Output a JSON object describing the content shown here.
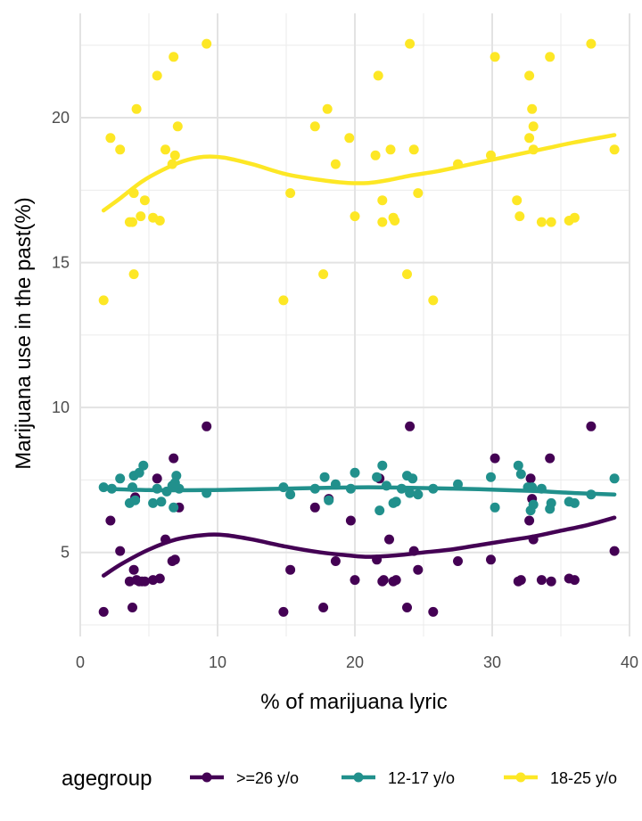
{
  "chart_data": {
    "type": "scatter",
    "xlabel": "% of marijuana lyric",
    "ylabel": "Marijuana use in the past(%)",
    "xlim": [
      0,
      40
    ],
    "ylim": [
      2.1,
      23.6
    ],
    "x_ticks": [
      0,
      10,
      20,
      30,
      40
    ],
    "y_ticks": [
      5,
      10,
      15,
      20
    ],
    "grid": true,
    "legend_title": "agegroup",
    "legend_position": "bottom",
    "series": [
      {
        "name": ">=26 y/o",
        "color": "#440154",
        "points": [
          [
            1.7,
            2.95
          ],
          [
            2.2,
            6.1
          ],
          [
            2.9,
            5.05
          ],
          [
            3.6,
            4.0
          ],
          [
            3.8,
            3.1
          ],
          [
            3.9,
            4.4
          ],
          [
            4.0,
            6.9
          ],
          [
            4.1,
            4.05
          ],
          [
            4.3,
            4.0
          ],
          [
            4.5,
            4.0
          ],
          [
            4.7,
            4.0
          ],
          [
            5.3,
            4.05
          ],
          [
            5.6,
            7.55
          ],
          [
            5.8,
            4.1
          ],
          [
            6.2,
            5.45
          ],
          [
            6.7,
            4.7
          ],
          [
            6.8,
            8.25
          ],
          [
            6.9,
            4.75
          ],
          [
            7.2,
            6.55
          ],
          [
            9.2,
            9.35
          ],
          [
            14.8,
            2.95
          ],
          [
            15.3,
            4.4
          ],
          [
            17.1,
            6.55
          ],
          [
            17.7,
            3.1
          ],
          [
            18.1,
            6.85
          ],
          [
            18.6,
            4.7
          ],
          [
            19.7,
            6.1
          ],
          [
            20.0,
            4.05
          ],
          [
            21.6,
            4.75
          ],
          [
            21.8,
            7.55
          ],
          [
            22.0,
            4.0
          ],
          [
            22.1,
            4.05
          ],
          [
            22.5,
            5.45
          ],
          [
            22.8,
            4.0
          ],
          [
            23.0,
            4.05
          ],
          [
            23.8,
            3.1
          ],
          [
            24.0,
            9.35
          ],
          [
            24.3,
            5.05
          ],
          [
            24.6,
            4.4
          ],
          [
            25.7,
            2.95
          ],
          [
            27.5,
            4.7
          ],
          [
            29.9,
            4.75
          ],
          [
            30.2,
            8.25
          ],
          [
            31.9,
            4.0
          ],
          [
            32.1,
            4.05
          ],
          [
            32.7,
            6.1
          ],
          [
            32.8,
            7.55
          ],
          [
            32.9,
            6.85
          ],
          [
            33.0,
            5.45
          ],
          [
            33.6,
            4.05
          ],
          [
            34.2,
            8.25
          ],
          [
            34.3,
            4.0
          ],
          [
            35.6,
            4.1
          ],
          [
            36.0,
            4.05
          ],
          [
            37.2,
            9.35
          ],
          [
            38.9,
            5.05
          ]
        ],
        "smooth": [
          [
            1.7,
            4.2
          ],
          [
            3.0,
            4.6
          ],
          [
            5.0,
            5.1
          ],
          [
            7.0,
            5.45
          ],
          [
            9.0,
            5.6
          ],
          [
            10.5,
            5.6
          ],
          [
            12.5,
            5.45
          ],
          [
            15.0,
            5.2
          ],
          [
            17.5,
            5.0
          ],
          [
            19.5,
            4.9
          ],
          [
            21.0,
            4.85
          ],
          [
            23.0,
            4.9
          ],
          [
            25.0,
            5.0
          ],
          [
            27.0,
            5.1
          ],
          [
            29.0,
            5.25
          ],
          [
            31.0,
            5.4
          ],
          [
            33.0,
            5.55
          ],
          [
            35.0,
            5.75
          ],
          [
            37.0,
            5.95
          ],
          [
            38.9,
            6.2
          ]
        ]
      },
      {
        "name": "12-17 y/o",
        "color": "#21908C",
        "points": [
          [
            1.7,
            7.25
          ],
          [
            2.3,
            7.2
          ],
          [
            2.9,
            7.55
          ],
          [
            3.6,
            6.7
          ],
          [
            3.8,
            7.25
          ],
          [
            3.9,
            7.65
          ],
          [
            4.0,
            6.8
          ],
          [
            4.3,
            7.75
          ],
          [
            4.6,
            8.0
          ],
          [
            5.3,
            6.7
          ],
          [
            5.6,
            7.2
          ],
          [
            5.9,
            6.75
          ],
          [
            6.3,
            7.1
          ],
          [
            6.7,
            7.3
          ],
          [
            6.8,
            6.55
          ],
          [
            6.9,
            7.4
          ],
          [
            7.0,
            7.65
          ],
          [
            7.2,
            7.2
          ],
          [
            9.2,
            7.05
          ],
          [
            14.8,
            7.25
          ],
          [
            15.3,
            7.0
          ],
          [
            17.1,
            7.2
          ],
          [
            17.8,
            7.6
          ],
          [
            18.1,
            6.8
          ],
          [
            18.6,
            7.35
          ],
          [
            19.7,
            7.2
          ],
          [
            20.0,
            7.75
          ],
          [
            21.6,
            7.6
          ],
          [
            21.8,
            6.45
          ],
          [
            22.0,
            8.0
          ],
          [
            22.3,
            7.3
          ],
          [
            22.8,
            6.7
          ],
          [
            23.0,
            6.75
          ],
          [
            23.4,
            7.2
          ],
          [
            23.8,
            7.65
          ],
          [
            24.0,
            7.05
          ],
          [
            24.2,
            7.55
          ],
          [
            24.6,
            7.0
          ],
          [
            25.7,
            7.2
          ],
          [
            27.5,
            7.35
          ],
          [
            29.9,
            7.6
          ],
          [
            30.2,
            6.55
          ],
          [
            31.9,
            8.0
          ],
          [
            32.1,
            7.7
          ],
          [
            32.6,
            7.25
          ],
          [
            32.8,
            6.45
          ],
          [
            32.9,
            7.25
          ],
          [
            33.0,
            6.65
          ],
          [
            33.6,
            7.2
          ],
          [
            34.2,
            6.5
          ],
          [
            34.3,
            6.7
          ],
          [
            35.6,
            6.75
          ],
          [
            36.0,
            6.7
          ],
          [
            37.2,
            7.0
          ],
          [
            38.9,
            7.55
          ]
        ],
        "smooth": [
          [
            1.7,
            7.2
          ],
          [
            5.0,
            7.15
          ],
          [
            9.0,
            7.15
          ],
          [
            13.0,
            7.18
          ],
          [
            17.0,
            7.22
          ],
          [
            21.0,
            7.25
          ],
          [
            25.0,
            7.22
          ],
          [
            29.0,
            7.18
          ],
          [
            33.0,
            7.12
          ],
          [
            36.0,
            7.05
          ],
          [
            38.9,
            7.0
          ]
        ]
      },
      {
        "name": "18-25 y/o",
        "color": "#FDE725",
        "points": [
          [
            1.7,
            13.7
          ],
          [
            2.2,
            19.3
          ],
          [
            2.9,
            18.9
          ],
          [
            3.6,
            16.4
          ],
          [
            3.8,
            16.4
          ],
          [
            3.9,
            14.6
          ],
          [
            3.9,
            17.4
          ],
          [
            4.1,
            20.3
          ],
          [
            4.4,
            16.6
          ],
          [
            4.7,
            17.15
          ],
          [
            5.3,
            16.55
          ],
          [
            5.6,
            21.45
          ],
          [
            5.8,
            16.45
          ],
          [
            6.2,
            18.9
          ],
          [
            6.7,
            18.4
          ],
          [
            6.8,
            22.1
          ],
          [
            6.9,
            18.7
          ],
          [
            7.1,
            19.7
          ],
          [
            9.2,
            22.55
          ],
          [
            14.8,
            13.7
          ],
          [
            15.3,
            17.4
          ],
          [
            17.1,
            19.7
          ],
          [
            17.7,
            14.6
          ],
          [
            18.0,
            20.3
          ],
          [
            18.6,
            18.4
          ],
          [
            19.6,
            19.3
          ],
          [
            20.0,
            16.6
          ],
          [
            21.5,
            18.7
          ],
          [
            21.7,
            21.45
          ],
          [
            22.0,
            16.4
          ],
          [
            22.0,
            17.15
          ],
          [
            22.6,
            18.9
          ],
          [
            22.8,
            16.55
          ],
          [
            22.9,
            16.45
          ],
          [
            23.8,
            14.6
          ],
          [
            24.0,
            22.55
          ],
          [
            24.3,
            18.9
          ],
          [
            24.6,
            17.4
          ],
          [
            25.7,
            13.7
          ],
          [
            27.5,
            18.4
          ],
          [
            29.9,
            18.7
          ],
          [
            30.2,
            22.1
          ],
          [
            31.8,
            17.15
          ],
          [
            32.0,
            16.6
          ],
          [
            32.7,
            21.45
          ],
          [
            32.7,
            19.3
          ],
          [
            32.9,
            20.3
          ],
          [
            33.0,
            19.7
          ],
          [
            33.0,
            18.9
          ],
          [
            33.6,
            16.4
          ],
          [
            34.2,
            22.1
          ],
          [
            34.3,
            16.4
          ],
          [
            35.6,
            16.45
          ],
          [
            36.0,
            16.55
          ],
          [
            37.2,
            22.55
          ],
          [
            38.9,
            18.9
          ]
        ],
        "smooth": [
          [
            1.7,
            16.8
          ],
          [
            3.0,
            17.25
          ],
          [
            4.5,
            17.8
          ],
          [
            6.0,
            18.2
          ],
          [
            7.5,
            18.5
          ],
          [
            9.0,
            18.65
          ],
          [
            10.5,
            18.62
          ],
          [
            12.5,
            18.4
          ],
          [
            15.0,
            18.05
          ],
          [
            17.5,
            17.85
          ],
          [
            19.5,
            17.75
          ],
          [
            21.0,
            17.75
          ],
          [
            22.5,
            17.85
          ],
          [
            24.0,
            18.0
          ],
          [
            26.0,
            18.15
          ],
          [
            28.0,
            18.35
          ],
          [
            30.0,
            18.55
          ],
          [
            32.0,
            18.75
          ],
          [
            34.0,
            18.95
          ],
          [
            36.0,
            19.15
          ],
          [
            38.9,
            19.4
          ]
        ]
      }
    ]
  }
}
